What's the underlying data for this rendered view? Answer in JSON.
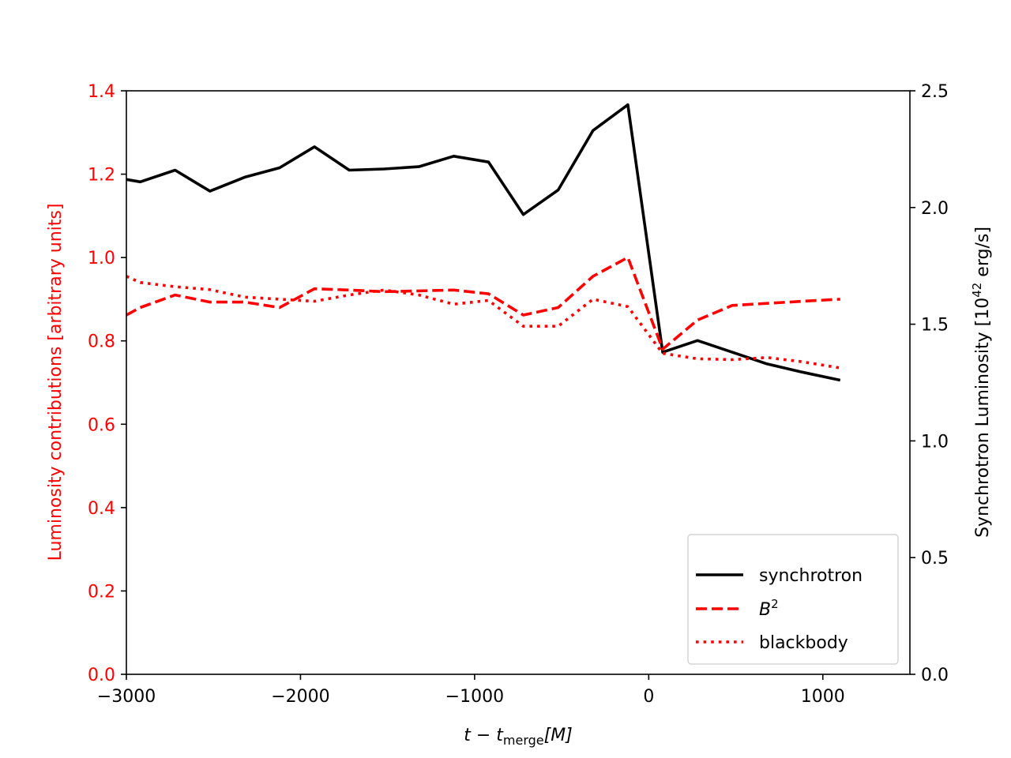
{
  "chart_data": {
    "type": "line",
    "xlabel": "t − t_merge [M]",
    "xlabel_main": "t − t",
    "xlabel_sub": "merge",
    "xlabel_tail": "[M]",
    "xlim": [
      -3000,
      1500
    ],
    "x_ticks": [
      -3000,
      -2000,
      -1000,
      0,
      1000
    ],
    "x_tick_labels": [
      "−3000",
      "−2000",
      "−1000",
      "0",
      "1000"
    ],
    "left_axis": {
      "label": "Luminosity contributions [arbitrary units]",
      "ylim": [
        0,
        1.4
      ],
      "ticks": [
        0.0,
        0.2,
        0.4,
        0.6,
        0.8,
        1.0,
        1.2,
        1.4
      ],
      "tick_labels": [
        "0.0",
        "0.2",
        "0.4",
        "0.6",
        "0.8",
        "1.0",
        "1.2",
        "1.4"
      ],
      "color": "#ff0000"
    },
    "right_axis": {
      "label": "Synchrotron Luminosity [10^42 erg/s]",
      "label_main": "Synchrotron Luminosity [10",
      "label_sup": "42",
      "label_tail": " erg/s]",
      "ylim": [
        0,
        2.5
      ],
      "ticks": [
        0.0,
        0.5,
        1.0,
        1.5,
        2.0,
        2.5
      ],
      "tick_labels": [
        "0.0",
        "0.5",
        "1.0",
        "1.5",
        "2.0",
        "2.5"
      ],
      "color": "#000000"
    },
    "series": [
      {
        "name": "synchrotron",
        "axis": "right",
        "color": "#000000",
        "style": "solid",
        "x": [
          -3000,
          -2920,
          -2720,
          -2520,
          -2320,
          -2120,
          -1920,
          -1720,
          -1520,
          -1320,
          -1120,
          -920,
          -720,
          -520,
          -320,
          -120,
          80,
          280,
          480,
          680,
          880,
          1100
        ],
        "y": [
          2.12,
          2.11,
          2.16,
          2.07,
          2.13,
          2.17,
          2.26,
          2.16,
          2.165,
          2.175,
          2.22,
          2.195,
          1.97,
          2.075,
          2.33,
          2.44,
          1.38,
          1.43,
          1.38,
          1.33,
          1.295,
          1.26
        ]
      },
      {
        "name": "B^2",
        "label_main": "B",
        "label_sup": "2",
        "axis": "left",
        "color": "#ff0000",
        "style": "dashed",
        "x": [
          -3000,
          -2920,
          -2720,
          -2520,
          -2320,
          -2120,
          -1920,
          -1720,
          -1520,
          -1320,
          -1120,
          -920,
          -720,
          -520,
          -320,
          -120,
          80,
          280,
          480,
          680,
          880,
          1100
        ],
        "y": [
          0.862,
          0.88,
          0.91,
          0.893,
          0.893,
          0.88,
          0.925,
          0.922,
          0.918,
          0.92,
          0.922,
          0.913,
          0.862,
          0.88,
          0.955,
          1.0,
          0.78,
          0.85,
          0.885,
          0.89,
          0.895,
          0.9
        ]
      },
      {
        "name": "blackbody",
        "axis": "left",
        "color": "#ff0000",
        "style": "dotted",
        "x": [
          -3000,
          -2920,
          -2720,
          -2520,
          -2320,
          -2120,
          -1920,
          -1720,
          -1520,
          -1320,
          -1120,
          -920,
          -720,
          -520,
          -320,
          -120,
          80,
          280,
          480,
          680,
          880,
          1100
        ],
        "y": [
          0.955,
          0.94,
          0.93,
          0.923,
          0.905,
          0.9,
          0.895,
          0.91,
          0.922,
          0.91,
          0.888,
          0.897,
          0.835,
          0.835,
          0.9,
          0.882,
          0.77,
          0.757,
          0.755,
          0.76,
          0.75,
          0.735
        ]
      }
    ],
    "legend": {
      "placement": "lower-right",
      "entries": [
        "synchrotron",
        "B^2",
        "blackbody"
      ]
    },
    "grid": false
  }
}
